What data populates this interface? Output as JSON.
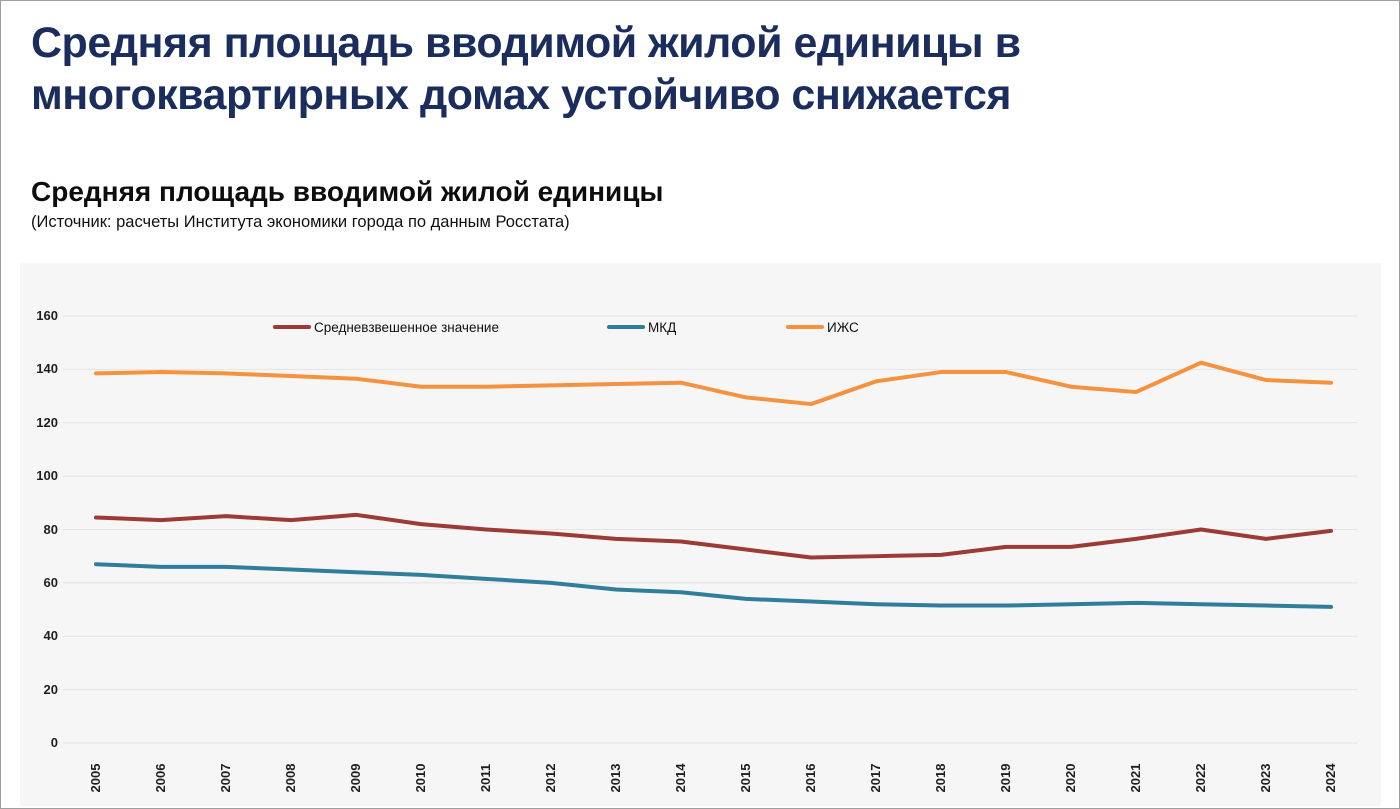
{
  "window": {
    "background_color": "#ffffff",
    "border_color": "#9e9e9e"
  },
  "header": {
    "title": "Средняя площадь вводимой жилой единицы в многоквартирных домах устойчиво снижается",
    "title_color": "#1a2d5c"
  },
  "chart_header": {
    "subtitle": "Средняя площадь вводимой жилой единицы",
    "source": "(Источник: расчеты Института экономики города по данным Росстата)"
  },
  "chart_data": {
    "type": "line",
    "title": "Средняя площадь вводимой жилой единицы",
    "categories": [
      "2005",
      "2006",
      "2007",
      "2008",
      "2009",
      "2010",
      "2011",
      "2012",
      "2013",
      "2014",
      "2015",
      "2016",
      "2017",
      "2018",
      "2019",
      "2020",
      "2021",
      "2022",
      "2023",
      "2024"
    ],
    "series": [
      {
        "name": "Средневзвешенное значение",
        "color": "#9c3a36",
        "values": [
          84.5,
          83.5,
          85,
          83.5,
          85.5,
          82,
          80,
          78.5,
          76.5,
          75.5,
          72.5,
          69.5,
          70,
          70.5,
          73.5,
          73.5,
          76.5,
          80,
          76.5,
          79.5
        ]
      },
      {
        "name": "МКД",
        "color": "#2f7f9c",
        "values": [
          67,
          66,
          66,
          65,
          64,
          63,
          61.5,
          60,
          57.5,
          56.5,
          54,
          53,
          52,
          51.5,
          51.5,
          52,
          52.5,
          52,
          51.5,
          51
        ]
      },
      {
        "name": "ИЖС",
        "color": "#f5923f",
        "values": [
          138.5,
          139,
          138.5,
          137.5,
          136.5,
          133.5,
          133.5,
          134,
          134.5,
          135,
          129.5,
          127,
          135.5,
          139,
          139,
          133.5,
          131.5,
          142.5,
          136,
          135
        ]
      }
    ],
    "xlabel": "",
    "ylabel": "",
    "ylim": [
      0,
      160
    ],
    "ytick_step": 20,
    "grid": true,
    "legend_position": "top",
    "panel_background": "#f6f6f6",
    "gridline_color": "#e3e3e3",
    "tick_label_color": "#1f1f1f"
  }
}
